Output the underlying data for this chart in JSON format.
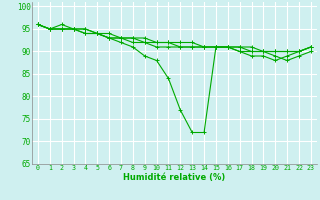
{
  "xlabel": "Humidité relative (%)",
  "background_color": "#cff0f0",
  "grid_color": "#aadddd",
  "line_color": "#00aa00",
  "marker_color": "#00aa00",
  "xlim": [
    -0.5,
    23.5
  ],
  "ylim": [
    65,
    101
  ],
  "yticks": [
    65,
    70,
    75,
    80,
    85,
    90,
    95,
    100
  ],
  "xticks": [
    0,
    1,
    2,
    3,
    4,
    5,
    6,
    7,
    8,
    9,
    10,
    11,
    12,
    13,
    14,
    15,
    16,
    17,
    18,
    19,
    20,
    21,
    22,
    23
  ],
  "series": [
    [
      96,
      95,
      96,
      95,
      95,
      94,
      93,
      92,
      91,
      89,
      88,
      84,
      77,
      72,
      72,
      91,
      91,
      90,
      89,
      89,
      88,
      89,
      90,
      91
    ],
    [
      96,
      95,
      95,
      95,
      94,
      94,
      93,
      93,
      93,
      92,
      91,
      91,
      91,
      91,
      91,
      91,
      91,
      90,
      90,
      90,
      89,
      88,
      89,
      90
    ],
    [
      96,
      95,
      95,
      95,
      94,
      94,
      93,
      93,
      92,
      92,
      92,
      92,
      91,
      91,
      91,
      91,
      91,
      91,
      90,
      90,
      90,
      90,
      90,
      91
    ],
    [
      96,
      95,
      95,
      95,
      95,
      94,
      94,
      93,
      93,
      93,
      92,
      92,
      92,
      92,
      91,
      91,
      91,
      91,
      91,
      90,
      90,
      90,
      90,
      91
    ]
  ]
}
